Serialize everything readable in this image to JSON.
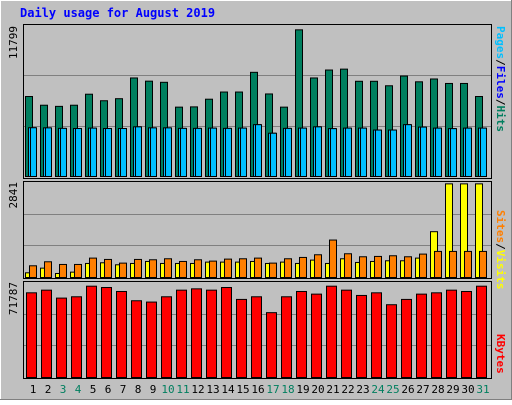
{
  "chart_data": [
    {
      "type": "bar",
      "title": "Daily usage for August 2019",
      "ymax_label": "11799",
      "categories": [
        "1",
        "2",
        "3",
        "4",
        "5",
        "6",
        "7",
        "8",
        "9",
        "10",
        "11",
        "12",
        "13",
        "14",
        "15",
        "16",
        "17",
        "18",
        "19",
        "20",
        "21",
        "22",
        "23",
        "24",
        "25",
        "26",
        "27",
        "28",
        "29",
        "30",
        "31"
      ],
      "weekend_days": [
        "3",
        "4",
        "10",
        "11",
        "17",
        "18",
        "24",
        "25",
        "31"
      ],
      "ylim": [
        0,
        11799
      ],
      "y_axis_label": [
        "Pages",
        "/",
        "Files",
        "/",
        "Hits"
      ],
      "series": [
        {
          "name": "Hits",
          "color": "#007f5f",
          "values": [
            6250,
            5570,
            5480,
            5570,
            6430,
            5920,
            6080,
            7700,
            7450,
            7360,
            5420,
            5440,
            6040,
            6600,
            6600,
            8140,
            6450,
            5420,
            11460,
            7700,
            8320,
            8390,
            7440,
            7440,
            7090,
            7850,
            7400,
            7620,
            7270,
            7270,
            6250
          ]
        },
        {
          "name": "Files",
          "color": "#00bfff",
          "values": [
            3810,
            3800,
            3760,
            3750,
            3780,
            3750,
            3750,
            3880,
            3800,
            3800,
            3760,
            3760,
            3780,
            3760,
            3780,
            4050,
            3380,
            3760,
            3780,
            3880,
            3740,
            3780,
            3780,
            3630,
            3630,
            4050,
            3860,
            3780,
            3740,
            3780,
            3780
          ]
        },
        {
          "name": "Pages",
          "color": "#00bfff",
          "values": [
            3810,
            3800,
            3760,
            3750,
            3780,
            3750,
            3750,
            3880,
            3800,
            3800,
            3760,
            3760,
            3780,
            3760,
            3780,
            4050,
            3380,
            3760,
            3780,
            3880,
            3740,
            3780,
            3780,
            3630,
            3630,
            4050,
            3860,
            3780,
            3740,
            3780,
            3780
          ]
        }
      ]
    },
    {
      "type": "bar",
      "ymax_label": "2841",
      "ylim": [
        0,
        2841
      ],
      "y_axis_label": [
        "Sites",
        "/",
        "Visits"
      ],
      "series": [
        {
          "name": "Visits",
          "color": "#ffff00",
          "values": [
            140,
            280,
            120,
            160,
            420,
            440,
            380,
            420,
            480,
            420,
            420,
            420,
            460,
            460,
            460,
            480,
            420,
            460,
            420,
            520,
            420,
            560,
            450,
            480,
            500,
            500,
            580,
            1370,
            2800,
            2800,
            2800
          ]
        },
        {
          "name": "Sites",
          "color": "#ff7f00",
          "values": [
            350,
            470,
            390,
            390,
            580,
            540,
            430,
            540,
            530,
            560,
            480,
            530,
            490,
            550,
            560,
            580,
            430,
            560,
            600,
            680,
            1120,
            710,
            620,
            630,
            650,
            620,
            700,
            780,
            780,
            780,
            780
          ]
        }
      ]
    },
    {
      "type": "bar",
      "ymax_label": "71787",
      "ylim": [
        0,
        71787
      ],
      "y_axis_label": [
        "KBytes"
      ],
      "series": [
        {
          "name": "KBytes",
          "color": "#ff0000",
          "values": [
            64000,
            66000,
            60000,
            61000,
            69000,
            68000,
            65000,
            58000,
            57000,
            61000,
            66000,
            67000,
            66000,
            68000,
            59000,
            61000,
            49000,
            61000,
            65000,
            63000,
            69000,
            66000,
            62000,
            64000,
            55000,
            59000,
            63000,
            64000,
            66000,
            65000,
            69000
          ]
        }
      ]
    }
  ]
}
